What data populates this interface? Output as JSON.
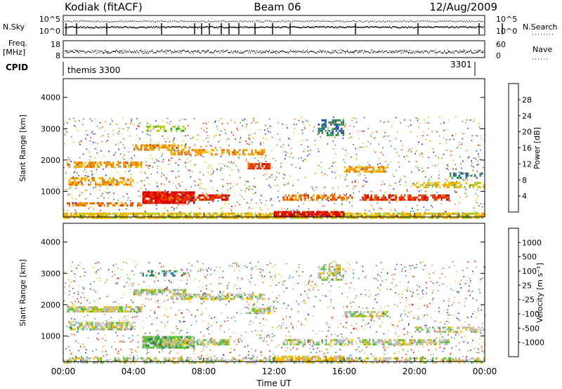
{
  "header": {
    "station": "Kodiak (fitACF)",
    "beam": "Beam 06",
    "date": "12/Aug/2009"
  },
  "top_panels": {
    "nsky_label": "N.Sky",
    "nsky_ticks": [
      "10^5",
      "10^0"
    ],
    "nsearch_label": "N.Search",
    "nsearch_ticks": [
      "10^5",
      "10^0"
    ],
    "freq_label_1": "Freq.",
    "freq_label_2": "[MHz]",
    "freq_ticks": [
      "18",
      "8"
    ],
    "nave_label": "Nave",
    "nave_ticks": [
      "60",
      "0"
    ],
    "cpid_label": "CPID",
    "cpid_values": [
      "themis 3300",
      "3301"
    ]
  },
  "x_axis": {
    "label": "Time UT",
    "ticks": [
      "00:00",
      "04:00",
      "08:00",
      "12:00",
      "16:00",
      "20:00",
      "00:00"
    ],
    "hours": [
      0,
      4,
      8,
      12,
      16,
      20,
      24
    ]
  },
  "chart_data": [
    {
      "type": "heatmap",
      "name": "power-panel",
      "xlabel": "Time UT",
      "ylabel": "Slant Range [km]",
      "xlim": [
        0,
        24
      ],
      "ylim": [
        180,
        4600
      ],
      "yticks": [
        1000,
        2000,
        3000,
        4000
      ],
      "colorbar": {
        "label": "Power [dB]",
        "ticks": [
          "28",
          "24",
          "20",
          "16",
          "12",
          "8",
          "4"
        ],
        "colors": [
          "#0000ff",
          "#1f4fbf",
          "#2e7f6b",
          "#3caa3c",
          "#9acd32",
          "#f2c200",
          "#f5a000",
          "#f07000",
          "#e83a00",
          "#e00000"
        ]
      },
      "bands": [
        {
          "t0": 0.0,
          "t1": 24.0,
          "r0": 180,
          "r1": 320,
          "c": 5,
          "density": 0.8
        },
        {
          "t0": 0.2,
          "t1": 4.5,
          "r0": 1750,
          "r1": 1950,
          "c": 6,
          "density": 0.7
        },
        {
          "t0": 0.3,
          "t1": 4.0,
          "r0": 1200,
          "r1": 1450,
          "c": 6,
          "density": 0.6
        },
        {
          "t0": 0.2,
          "t1": 4.5,
          "r0": 520,
          "r1": 650,
          "c": 7,
          "density": 0.6
        },
        {
          "t0": 4.5,
          "t1": 7.5,
          "r0": 600,
          "r1": 1000,
          "c": 9,
          "density": 0.9
        },
        {
          "t0": 5.5,
          "t1": 9.5,
          "r0": 700,
          "r1": 900,
          "c": 8,
          "density": 0.8
        },
        {
          "t0": 4.0,
          "t1": 7.0,
          "r0": 2300,
          "r1": 2500,
          "c": 6,
          "density": 0.7
        },
        {
          "t0": 6.0,
          "t1": 11.5,
          "r0": 2150,
          "r1": 2350,
          "c": 6,
          "density": 0.6
        },
        {
          "t0": 10.5,
          "t1": 11.8,
          "r0": 1700,
          "r1": 1900,
          "c": 8,
          "density": 0.8
        },
        {
          "t0": 12.0,
          "t1": 16.0,
          "r0": 230,
          "r1": 370,
          "c": 9,
          "density": 0.9
        },
        {
          "t0": 12.5,
          "t1": 16.5,
          "r0": 750,
          "r1": 900,
          "c": 7,
          "density": 0.6
        },
        {
          "t0": 16.0,
          "t1": 18.5,
          "r0": 1600,
          "r1": 1800,
          "c": 6,
          "density": 0.7
        },
        {
          "t0": 17.0,
          "t1": 22.0,
          "r0": 700,
          "r1": 900,
          "c": 8,
          "density": 0.7
        },
        {
          "t0": 20.0,
          "t1": 24.0,
          "r0": 1100,
          "r1": 1300,
          "c": 5,
          "density": 0.5
        },
        {
          "t0": 22.0,
          "t1": 24.0,
          "r0": 1400,
          "r1": 1600,
          "c": 2,
          "density": 0.5
        },
        {
          "t0": 14.5,
          "t1": 16.0,
          "r0": 2800,
          "r1": 3300,
          "c": 2,
          "density": 0.5
        },
        {
          "t0": 4.5,
          "t1": 7.0,
          "r0": 2900,
          "r1": 3100,
          "c": 4,
          "density": 0.4
        }
      ]
    },
    {
      "type": "heatmap",
      "name": "velocity-panel",
      "xlabel": "Time UT",
      "ylabel": "Slant Range [km]",
      "xlim": [
        0,
        24
      ],
      "ylim": [
        180,
        4600
      ],
      "yticks": [
        1000,
        2000,
        3000,
        4000
      ],
      "colorbar": {
        "label": "Velocity [m s⁻¹]",
        "ticks": [
          "1000",
          "500",
          "100",
          "25",
          "-25",
          "-100",
          "-500",
          "-1000"
        ],
        "colors": [
          "#1a2fb0",
          "#2a7fbf",
          "#2e8b57",
          "#59c13a",
          "#bebebe",
          "#f2c200",
          "#f59000",
          "#f06000",
          "#e82000",
          "#e00000"
        ]
      },
      "bands": [
        {
          "t0": 0.0,
          "t1": 24.0,
          "r0": 180,
          "r1": 320,
          "c": 4,
          "density": 0.5
        },
        {
          "t0": 0.2,
          "t1": 4.5,
          "r0": 1750,
          "r1": 1950,
          "c": 4,
          "density": 0.8
        },
        {
          "t0": 0.3,
          "t1": 4.0,
          "r0": 1200,
          "r1": 1450,
          "c": 4,
          "density": 0.7
        },
        {
          "t0": 4.5,
          "t1": 7.5,
          "r0": 600,
          "r1": 1000,
          "c": 3,
          "density": 0.9
        },
        {
          "t0": 5.5,
          "t1": 9.5,
          "r0": 700,
          "r1": 900,
          "c": 4,
          "density": 0.8
        },
        {
          "t0": 4.0,
          "t1": 7.0,
          "r0": 2300,
          "r1": 2500,
          "c": 4,
          "density": 0.7
        },
        {
          "t0": 6.0,
          "t1": 11.5,
          "r0": 2150,
          "r1": 2350,
          "c": 4,
          "density": 0.6
        },
        {
          "t0": 10.5,
          "t1": 11.8,
          "r0": 1700,
          "r1": 1900,
          "c": 4,
          "density": 0.7
        },
        {
          "t0": 12.0,
          "t1": 16.0,
          "r0": 230,
          "r1": 370,
          "c": 5,
          "density": 0.7
        },
        {
          "t0": 12.5,
          "t1": 16.5,
          "r0": 750,
          "r1": 900,
          "c": 4,
          "density": 0.6
        },
        {
          "t0": 16.0,
          "t1": 18.5,
          "r0": 1600,
          "r1": 1800,
          "c": 4,
          "density": 0.7
        },
        {
          "t0": 17.0,
          "t1": 22.0,
          "r0": 700,
          "r1": 900,
          "c": 4,
          "density": 0.7
        },
        {
          "t0": 20.0,
          "t1": 24.0,
          "r0": 1100,
          "r1": 1300,
          "c": 4,
          "density": 0.5
        },
        {
          "t0": 14.5,
          "t1": 16.0,
          "r0": 2800,
          "r1": 3300,
          "c": 4,
          "density": 0.5
        },
        {
          "t0": 4.5,
          "t1": 7.0,
          "r0": 2900,
          "r1": 3100,
          "c": 2,
          "density": 0.4
        }
      ]
    }
  ]
}
